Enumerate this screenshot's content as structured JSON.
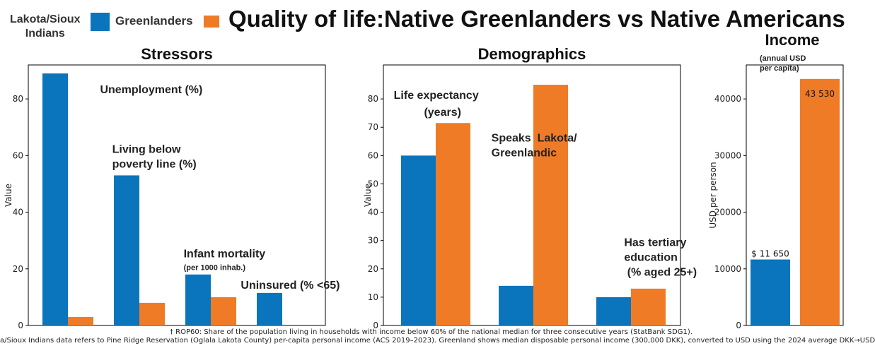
{
  "page": {
    "title": "Quality of life:Native Greenlanders vs Native Americans",
    "footnote_1": "† ROP60: Share of the population living in households with income below 60% of the national median for three consecutive years (StatBank SDG1).",
    "footnote_2": "a/Sioux Indians data refers to Pine Ridge Reservation (Oglala Lakota County) per-capita personal income (ACS 2019–2023). Greenland shows median disposable personal income (300,000 DKK), converted to USD using the 2024 average DKK→USD"
  },
  "legend": {
    "lakota_label_line1": "Lakota/Sioux",
    "lakota_label_line2": "Indians",
    "greenlanders_label": "Greenlanders",
    "color_blue": "#0a75bc",
    "color_orange": "#f07b27"
  },
  "chart_data": [
    {
      "type": "bar",
      "title": "Stressors",
      "ylabel": "Value",
      "ylim": [
        0,
        92
      ],
      "yticks": [
        0,
        20,
        40,
        60,
        80
      ],
      "categories": [
        "Unemployment (%)",
        "Living below poverty line (%)",
        "Infant mortality",
        "Uninsured (% <65)"
      ],
      "series": [
        {
          "name": "Greenlanders",
          "values": [
            89,
            53,
            18,
            11.5
          ]
        },
        {
          "name": "Lakota/Sioux Indians",
          "values": [
            3,
            8,
            10,
            null
          ]
        }
      ],
      "annotations": [
        {
          "lines": [
            "Unemployment (%)"
          ],
          "x": 0.45,
          "y": 82
        },
        {
          "lines": [
            "Living below",
            "poverty line (%)"
          ],
          "x": 0.62,
          "y": 61
        },
        {
          "lines": [
            "Infant mortality"
          ],
          "sub": "(per 1000 inhab.)",
          "x": 1.62,
          "y": 24
        },
        {
          "lines": [
            "Uninsured (% <65)"
          ],
          "x": 2.42,
          "y": 13
        }
      ]
    },
    {
      "type": "bar",
      "title": "Demographics",
      "ylabel": "Value",
      "ylim": [
        0,
        92
      ],
      "yticks": [
        0,
        10,
        20,
        30,
        40,
        50,
        60,
        70,
        80
      ],
      "categories": [
        "Life expectancy (years)",
        "Speaks Lakota/ Greenlandic",
        "Has tertiary education (% aged 25+)"
      ],
      "series": [
        {
          "name": "Greenlanders",
          "values": [
            60,
            14,
            10
          ]
        },
        {
          "name": "Lakota/Sioux Indians",
          "values": [
            71.5,
            85,
            13
          ]
        }
      ],
      "annotations": [
        {
          "lines": [
            "Life expectancy"
          ],
          "x": -0.43,
          "y": 80
        },
        {
          "lines": [
            "(years)"
          ],
          "x": -0.12,
          "y": 74
        },
        {
          "lines": [
            "Speaks  Lakota/",
            "Greenlandic"
          ],
          "x": 0.57,
          "y": 65
        },
        {
          "lines": [
            "Has tertiary",
            "education",
            " (% aged 25+)"
          ],
          "x": 1.93,
          "y": 28
        }
      ]
    },
    {
      "type": "bar",
      "title": "Income",
      "subtitle_line1": "(annual USD",
      "subtitle_line2": "per capita)",
      "ylabel": "USD per person",
      "ylim": [
        0,
        46000
      ],
      "yticks": [
        0,
        10000,
        20000,
        30000,
        40000
      ],
      "categories": [
        "Greenlanders",
        "Lakota/Sioux Indians"
      ],
      "values": [
        11650,
        43530
      ],
      "value_labels": [
        "$ 11 650",
        "43 530"
      ]
    }
  ]
}
